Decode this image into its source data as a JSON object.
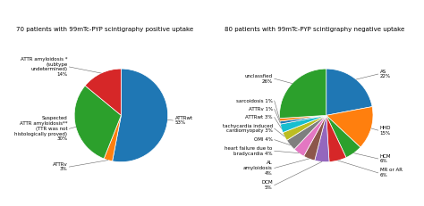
{
  "chart_data": [
    {
      "type": "pie",
      "title": "70 patients with 99mTc-PYP scintigraphy positive uptake",
      "categories": [
        "ATTRwt\n53%",
        "ATTRv\n3%",
        "Suspected\nATTR amyloidosis**\n(TTR was not\nhistologically proved)\n30%",
        "ATTR amyloidosis *\n(subtype\nundetermined)\n14%"
      ],
      "values": [
        53,
        3,
        30,
        14
      ]
    },
    {
      "type": "pie",
      "title": "80 patients with 99mTc-PYP scintigraphy negative uptake",
      "categories": [
        "AS\n22%",
        "HHD\n15%",
        "HCM\n6%",
        "MR or AR\n6%",
        "DCM\n5%",
        "AL\namyloidosis\n4%",
        "heart failure due to\nbradycardia 4%",
        "OMI 4%",
        "tachycardia induced\ncardiomyopaty 3%",
        "ATTRwt 3%",
        "ATTRv 1%",
        "sarcoidosis 1%",
        "unclassfied\n26%"
      ],
      "values": [
        22,
        15,
        6,
        6,
        5,
        4,
        4,
        4,
        3,
        3,
        1,
        1,
        26
      ]
    }
  ]
}
